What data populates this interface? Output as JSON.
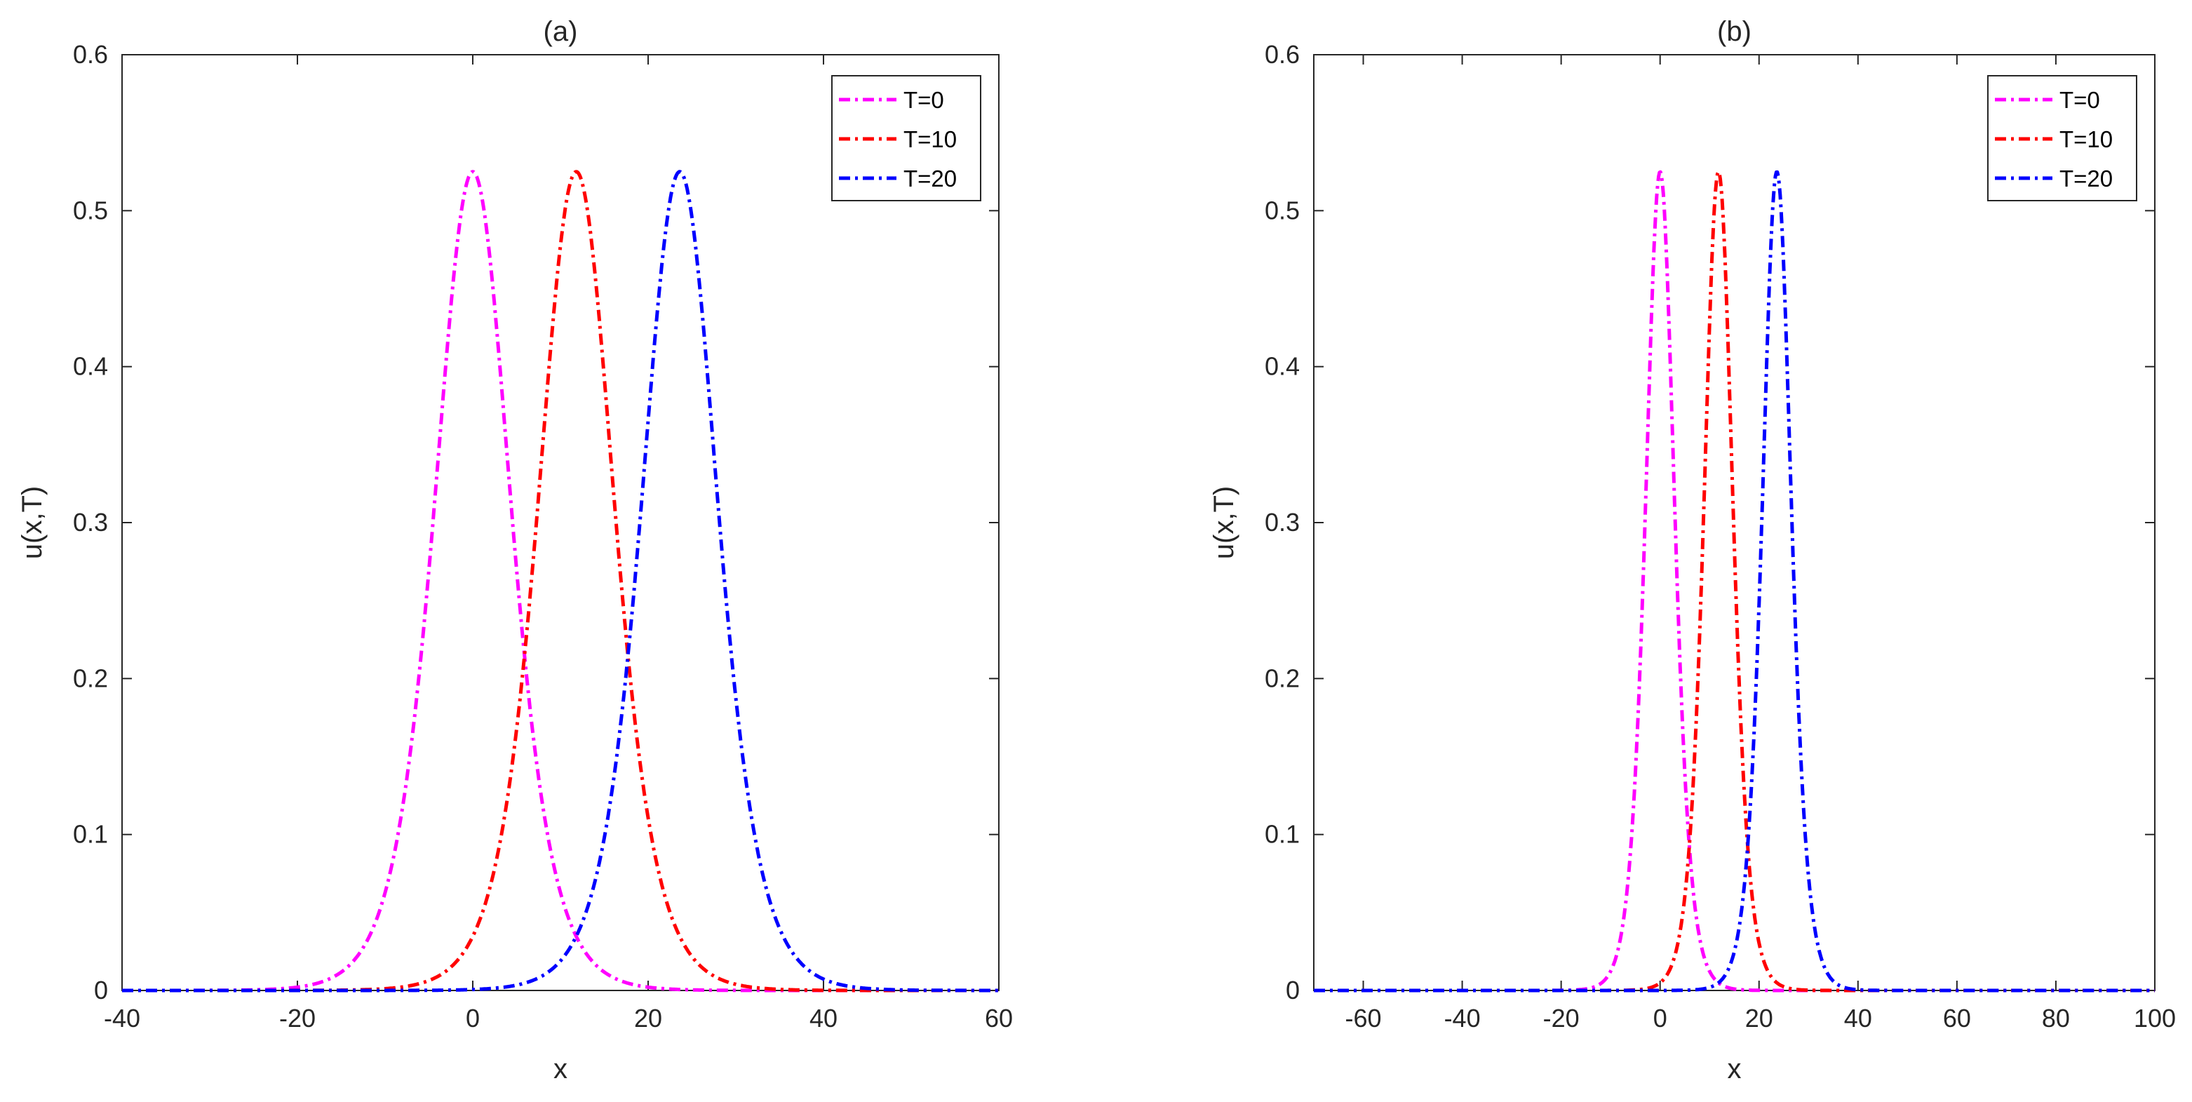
{
  "figure": {
    "layout": "two side-by-side panels"
  },
  "chart_data": [
    {
      "type": "line",
      "title": "(a)",
      "xlabel": "x",
      "ylabel": "u(x,T)",
      "xlim": [
        -40,
        60
      ],
      "ylim": [
        0,
        0.6
      ],
      "xticks": [
        -40,
        -20,
        0,
        20,
        40,
        60
      ],
      "yticks": [
        0,
        0.1,
        0.2,
        0.3,
        0.4,
        0.5,
        0.6
      ],
      "xtick_labels": [
        "-40",
        "-20",
        "0",
        "20",
        "40",
        "60"
      ],
      "ytick_labels": [
        "0",
        "0.1",
        "0.2",
        "0.3",
        "0.4",
        "0.5",
        "0.6"
      ],
      "legend": "top-right",
      "grid": false,
      "series": [
        {
          "name": "T=0",
          "color": "#ff00ff",
          "style": "dash-dot",
          "peak": 0.525,
          "center": 0,
          "width": 5.8
        },
        {
          "name": "T=10",
          "color": "#ff0000",
          "style": "dash-dot",
          "peak": 0.525,
          "center": 11.8,
          "width": 5.8
        },
        {
          "name": "T=20",
          "color": "#0000ff",
          "style": "dash-dot",
          "peak": 0.525,
          "center": 23.6,
          "width": 5.8
        }
      ],
      "curve_model": "u = peak * sech^2((x - center) / width)"
    },
    {
      "type": "line",
      "title": "(b)",
      "xlabel": "x",
      "ylabel": "u(x,T)",
      "xlim": [
        -70,
        100
      ],
      "ylim": [
        0,
        0.6
      ],
      "xticks": [
        -60,
        -40,
        -20,
        0,
        20,
        40,
        60,
        80,
        100
      ],
      "yticks": [
        0,
        0.1,
        0.2,
        0.3,
        0.4,
        0.5,
        0.6
      ],
      "xtick_labels": [
        "-60",
        "-40",
        "-20",
        "0",
        "20",
        "40",
        "60",
        "80",
        "100"
      ],
      "ytick_labels": [
        "0",
        "0.1",
        "0.2",
        "0.3",
        "0.4",
        "0.5",
        "0.6"
      ],
      "legend": "top-right",
      "grid": false,
      "series": [
        {
          "name": "T=0",
          "color": "#ff00ff",
          "style": "dash-dot",
          "peak": 0.525,
          "center": 0,
          "width": 3.9
        },
        {
          "name": "T=10",
          "color": "#ff0000",
          "style": "dash-dot",
          "peak": 0.525,
          "center": 11.8,
          "width": 3.9
        },
        {
          "name": "T=20",
          "color": "#0000ff",
          "style": "dash-dot",
          "peak": 0.525,
          "center": 23.6,
          "width": 3.9
        }
      ],
      "curve_model": "u = peak * sech^2((x - center) / width)"
    }
  ]
}
